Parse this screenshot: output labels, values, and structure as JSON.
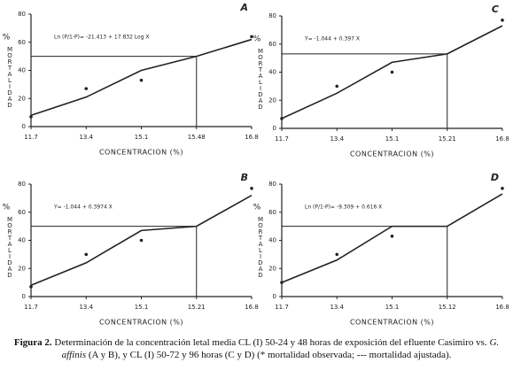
{
  "chart_data": [
    {
      "type": "line",
      "panel": "A",
      "equation": "Ln (P/1-P)= -21.413 + 17.832 Log X",
      "y_unit": "%",
      "y_label": "MORTALIDAD",
      "x_label": "CONCENTRACION (%)",
      "categories": [
        "11.7",
        "13.4",
        "15.1",
        "15.48",
        "16.8"
      ],
      "ylim": [
        0,
        80
      ],
      "yticks": [
        0,
        20,
        40,
        60,
        80
      ],
      "reference_y": 50,
      "series": [
        {
          "marker": "dot",
          "color": "#222",
          "values": [
            7,
            27,
            33,
            null,
            64
          ]
        },
        {
          "marker": "line",
          "color": "#222",
          "values": [
            8,
            21,
            40,
            50,
            62
          ]
        }
      ]
    },
    {
      "type": "line",
      "panel": "C",
      "equation": "Y= -1.044 + 0.397 X",
      "y_unit": "%",
      "y_label": "MORTALIDAD",
      "x_label": "CONCENTRACION (%)",
      "categories": [
        "11.7",
        "13.4",
        "15.1",
        "15.21",
        "16.8"
      ],
      "ylim": [
        0,
        80
      ],
      "yticks": [
        0,
        20,
        40,
        60,
        80
      ],
      "reference_y": 53,
      "series": [
        {
          "marker": "dot",
          "color": "#222",
          "values": [
            7,
            30,
            40,
            null,
            77
          ]
        },
        {
          "marker": "line",
          "color": "#222",
          "values": [
            7,
            25,
            47,
            53,
            73
          ]
        }
      ]
    },
    {
      "type": "line",
      "panel": "B",
      "equation": "Y= -1.044 + 0.3974 X",
      "y_unit": "%",
      "y_label": "MORTALIDAD",
      "x_label": "CONCENTRACION (%)",
      "categories": [
        "11.7",
        "13.4",
        "15.1",
        "15.21",
        "16.8"
      ],
      "ylim": [
        0,
        80
      ],
      "yticks": [
        0,
        20,
        40,
        60,
        80
      ],
      "reference_y": 50,
      "series": [
        {
          "marker": "dot",
          "color": "#222",
          "values": [
            7,
            30,
            40,
            null,
            77
          ]
        },
        {
          "marker": "line",
          "color": "#222",
          "values": [
            8,
            24,
            47,
            50,
            72
          ]
        }
      ]
    },
    {
      "type": "line",
      "panel": "D",
      "equation": "Ln (P/1-P)= -9.309 + 0.616 X",
      "y_unit": "%",
      "y_label": "MORTALIDAD",
      "x_label": "CONCENTRACION (%)",
      "categories": [
        "11.7",
        "13.4",
        "15.1",
        "15.12",
        "16.8"
      ],
      "ylim": [
        0,
        80
      ],
      "yticks": [
        0,
        20,
        40,
        60,
        80
      ],
      "reference_y": 50,
      "series": [
        {
          "marker": "dot",
          "color": "#222",
          "values": [
            10,
            30,
            43,
            null,
            77
          ]
        },
        {
          "marker": "line",
          "color": "#222",
          "values": [
            10,
            26,
            50,
            50,
            73
          ]
        }
      ]
    }
  ],
  "caption": {
    "label": "Figura 2.",
    "text_1": " Determinación de la concentración letal media CL (I) 50-24 y 48 horas de exposición del efluente Casimiro vs. ",
    "species": "G. affinis",
    "text_2": " (A y B), y CL (I) 50-72 y 96 horas (C y D) (* mortalidad observada; --- mortalidad ajustada)."
  }
}
